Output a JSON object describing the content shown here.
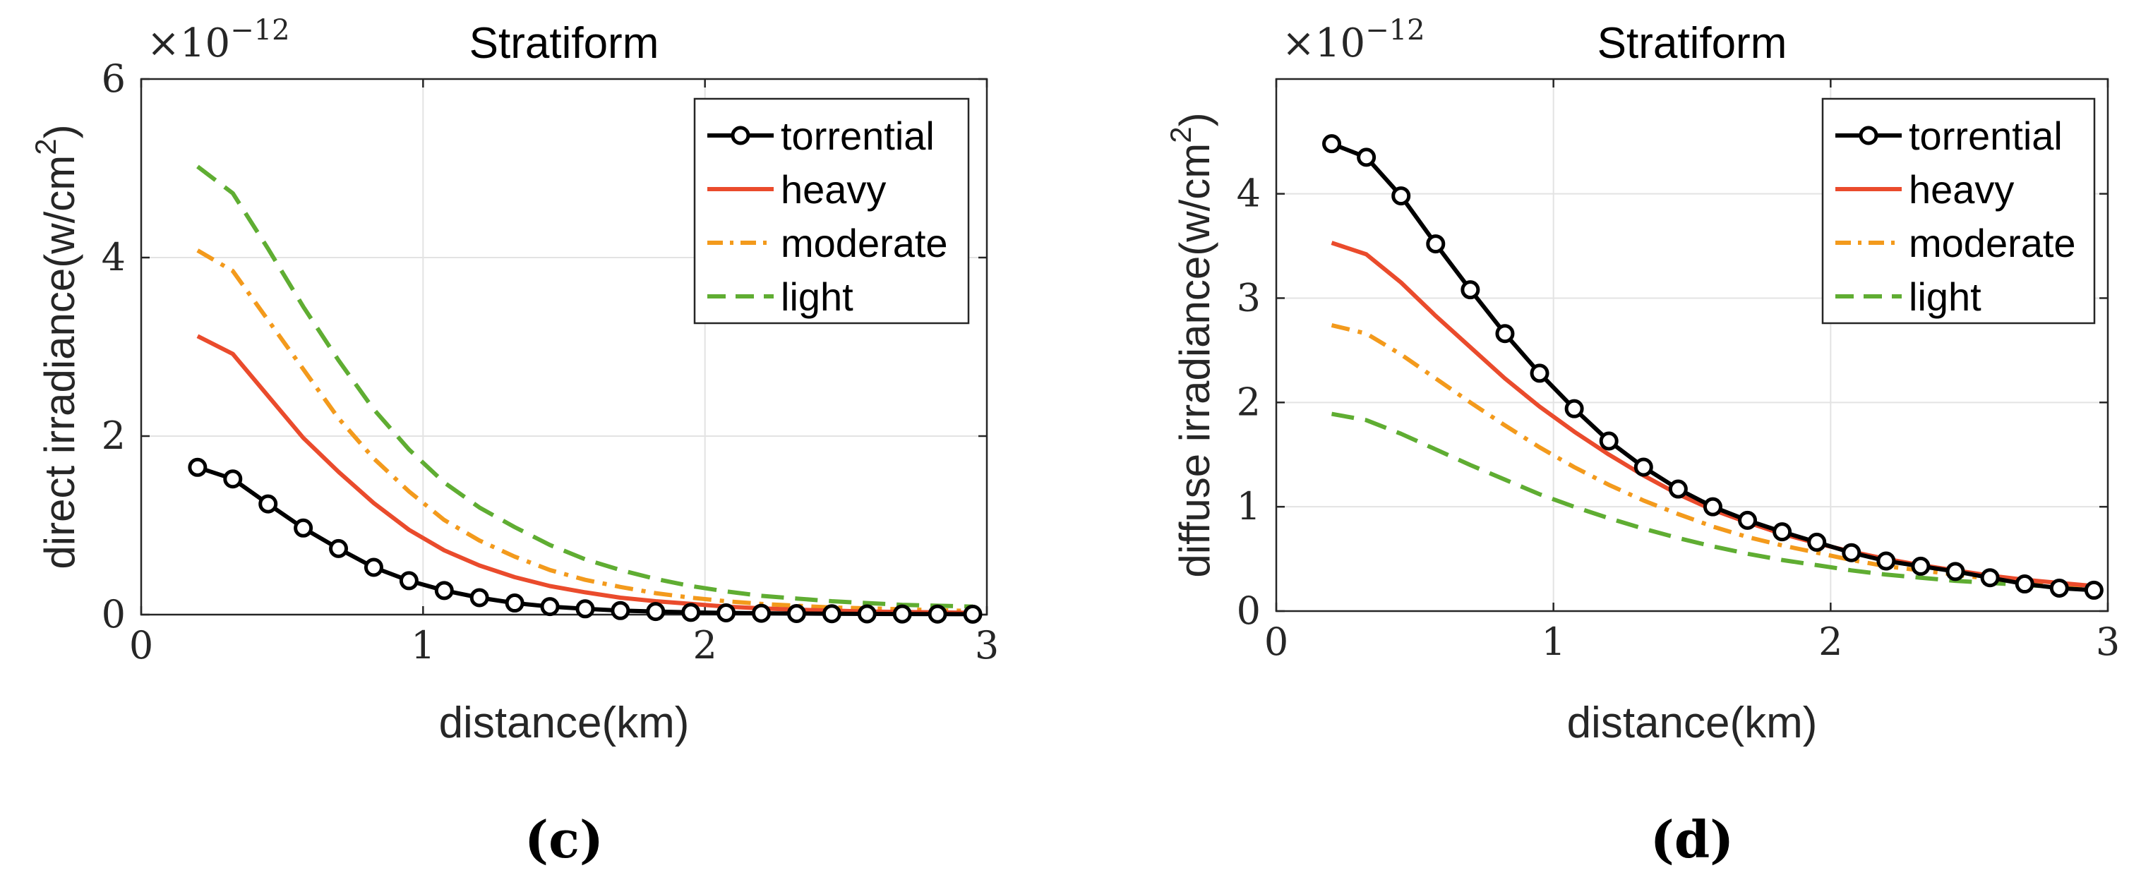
{
  "chart_data": [
    {
      "type": "line",
      "panel_label": "(c)",
      "title": "Stratiform",
      "xlabel": "distance(km)",
      "ylabel": "direct irradiance(w/cm²)",
      "ylabel_parts": {
        "base": "direct irradiance(w/cm",
        "sup": "2",
        "end": ")"
      },
      "scale_base": "×10",
      "scale_exp": "−12",
      "xlim": [
        0,
        3
      ],
      "ylim": [
        0,
        6
      ],
      "xticks": [
        0,
        1,
        2,
        3
      ],
      "xtick_labels": [
        "0",
        "1",
        "2",
        "3"
      ],
      "yticks": [
        0,
        2,
        4,
        6
      ],
      "ytick_labels": [
        "0",
        "2",
        "4",
        "6"
      ],
      "grid": true,
      "legend_position": "top-right",
      "x": [
        0.2,
        0.325,
        0.45,
        0.575,
        0.7,
        0.825,
        0.95,
        1.075,
        1.2,
        1.325,
        1.45,
        1.575,
        1.7,
        1.825,
        1.95,
        2.075,
        2.2,
        2.325,
        2.45,
        2.575,
        2.7,
        2.825,
        2.95
      ],
      "series": [
        {
          "name": "torrential",
          "color": "#000000",
          "dash": "solid",
          "markers": true,
          "values": [
            1.65,
            1.52,
            1.24,
            0.97,
            0.74,
            0.53,
            0.38,
            0.27,
            0.19,
            0.13,
            0.09,
            0.065,
            0.045,
            0.035,
            0.025,
            0.02,
            0.015,
            0.012,
            0.01,
            0.008,
            0.007,
            0.006,
            0.005
          ]
        },
        {
          "name": "heavy",
          "color": "#ea4b2c",
          "dash": "solid",
          "markers": false,
          "values": [
            3.12,
            2.92,
            2.45,
            1.98,
            1.6,
            1.25,
            0.95,
            0.72,
            0.55,
            0.42,
            0.32,
            0.25,
            0.19,
            0.15,
            0.12,
            0.09,
            0.07,
            0.055,
            0.045,
            0.035,
            0.03,
            0.025,
            0.02
          ]
        },
        {
          "name": "moderate",
          "color": "#f39a1c",
          "dash": "dashdot",
          "markers": false,
          "values": [
            4.08,
            3.85,
            3.3,
            2.75,
            2.2,
            1.75,
            1.38,
            1.06,
            0.83,
            0.65,
            0.5,
            0.39,
            0.31,
            0.24,
            0.19,
            0.15,
            0.12,
            0.1,
            0.08,
            0.07,
            0.06,
            0.05,
            0.04
          ]
        },
        {
          "name": "light",
          "color": "#5fad32",
          "dash": "dashed",
          "markers": false,
          "values": [
            5.02,
            4.72,
            4.1,
            3.45,
            2.85,
            2.3,
            1.85,
            1.48,
            1.2,
            0.98,
            0.78,
            0.62,
            0.5,
            0.4,
            0.32,
            0.26,
            0.21,
            0.18,
            0.15,
            0.13,
            0.11,
            0.1,
            0.09
          ]
        }
      ]
    },
    {
      "type": "line",
      "panel_label": "(d)",
      "title": "Stratiform",
      "xlabel": "distance(km)",
      "ylabel": "diffuse irradiance(w/cm²)",
      "ylabel_parts": {
        "base": "diffuse irradiance(w/cm",
        "sup": "2",
        "end": ")"
      },
      "scale_base": "×10",
      "scale_exp": "−12",
      "xlim": [
        0,
        3
      ],
      "ylim": [
        0,
        5.1
      ],
      "xticks": [
        0,
        1,
        2,
        3
      ],
      "xtick_labels": [
        "0",
        "1",
        "2",
        "3"
      ],
      "yticks": [
        0,
        1,
        2,
        3,
        4
      ],
      "ytick_labels": [
        "0",
        "1",
        "2",
        "3",
        "4"
      ],
      "grid": true,
      "legend_position": "top-right",
      "x": [
        0.2,
        0.325,
        0.45,
        0.575,
        0.7,
        0.825,
        0.95,
        1.075,
        1.2,
        1.325,
        1.45,
        1.575,
        1.7,
        1.825,
        1.95,
        2.075,
        2.2,
        2.325,
        2.45,
        2.575,
        2.7,
        2.825,
        2.95
      ],
      "series": [
        {
          "name": "torrential",
          "color": "#000000",
          "dash": "solid",
          "markers": true,
          "values": [
            4.48,
            4.35,
            3.98,
            3.52,
            3.08,
            2.66,
            2.28,
            1.94,
            1.63,
            1.38,
            1.17,
            1.0,
            0.87,
            0.76,
            0.66,
            0.56,
            0.48,
            0.43,
            0.38,
            0.32,
            0.26,
            0.22,
            0.2
          ]
        },
        {
          "name": "heavy",
          "color": "#ea4b2c",
          "dash": "solid",
          "markers": false,
          "values": [
            3.53,
            3.42,
            3.15,
            2.83,
            2.53,
            2.23,
            1.96,
            1.72,
            1.5,
            1.3,
            1.12,
            0.97,
            0.85,
            0.74,
            0.65,
            0.57,
            0.5,
            0.44,
            0.39,
            0.34,
            0.3,
            0.27,
            0.24
          ]
        },
        {
          "name": "moderate",
          "color": "#f39a1c",
          "dash": "dashdot",
          "markers": false,
          "values": [
            2.74,
            2.66,
            2.46,
            2.23,
            2.0,
            1.78,
            1.57,
            1.38,
            1.21,
            1.06,
            0.93,
            0.81,
            0.71,
            0.63,
            0.56,
            0.49,
            0.43,
            0.39,
            0.35,
            0.31,
            0.28,
            0.26,
            0.24
          ]
        },
        {
          "name": "light",
          "color": "#5fad32",
          "dash": "dashed",
          "markers": false,
          "values": [
            1.89,
            1.83,
            1.7,
            1.55,
            1.4,
            1.26,
            1.12,
            1.0,
            0.89,
            0.79,
            0.7,
            0.62,
            0.55,
            0.49,
            0.44,
            0.39,
            0.35,
            0.32,
            0.29,
            0.27,
            0.25,
            0.23,
            0.22
          ]
        }
      ]
    }
  ]
}
